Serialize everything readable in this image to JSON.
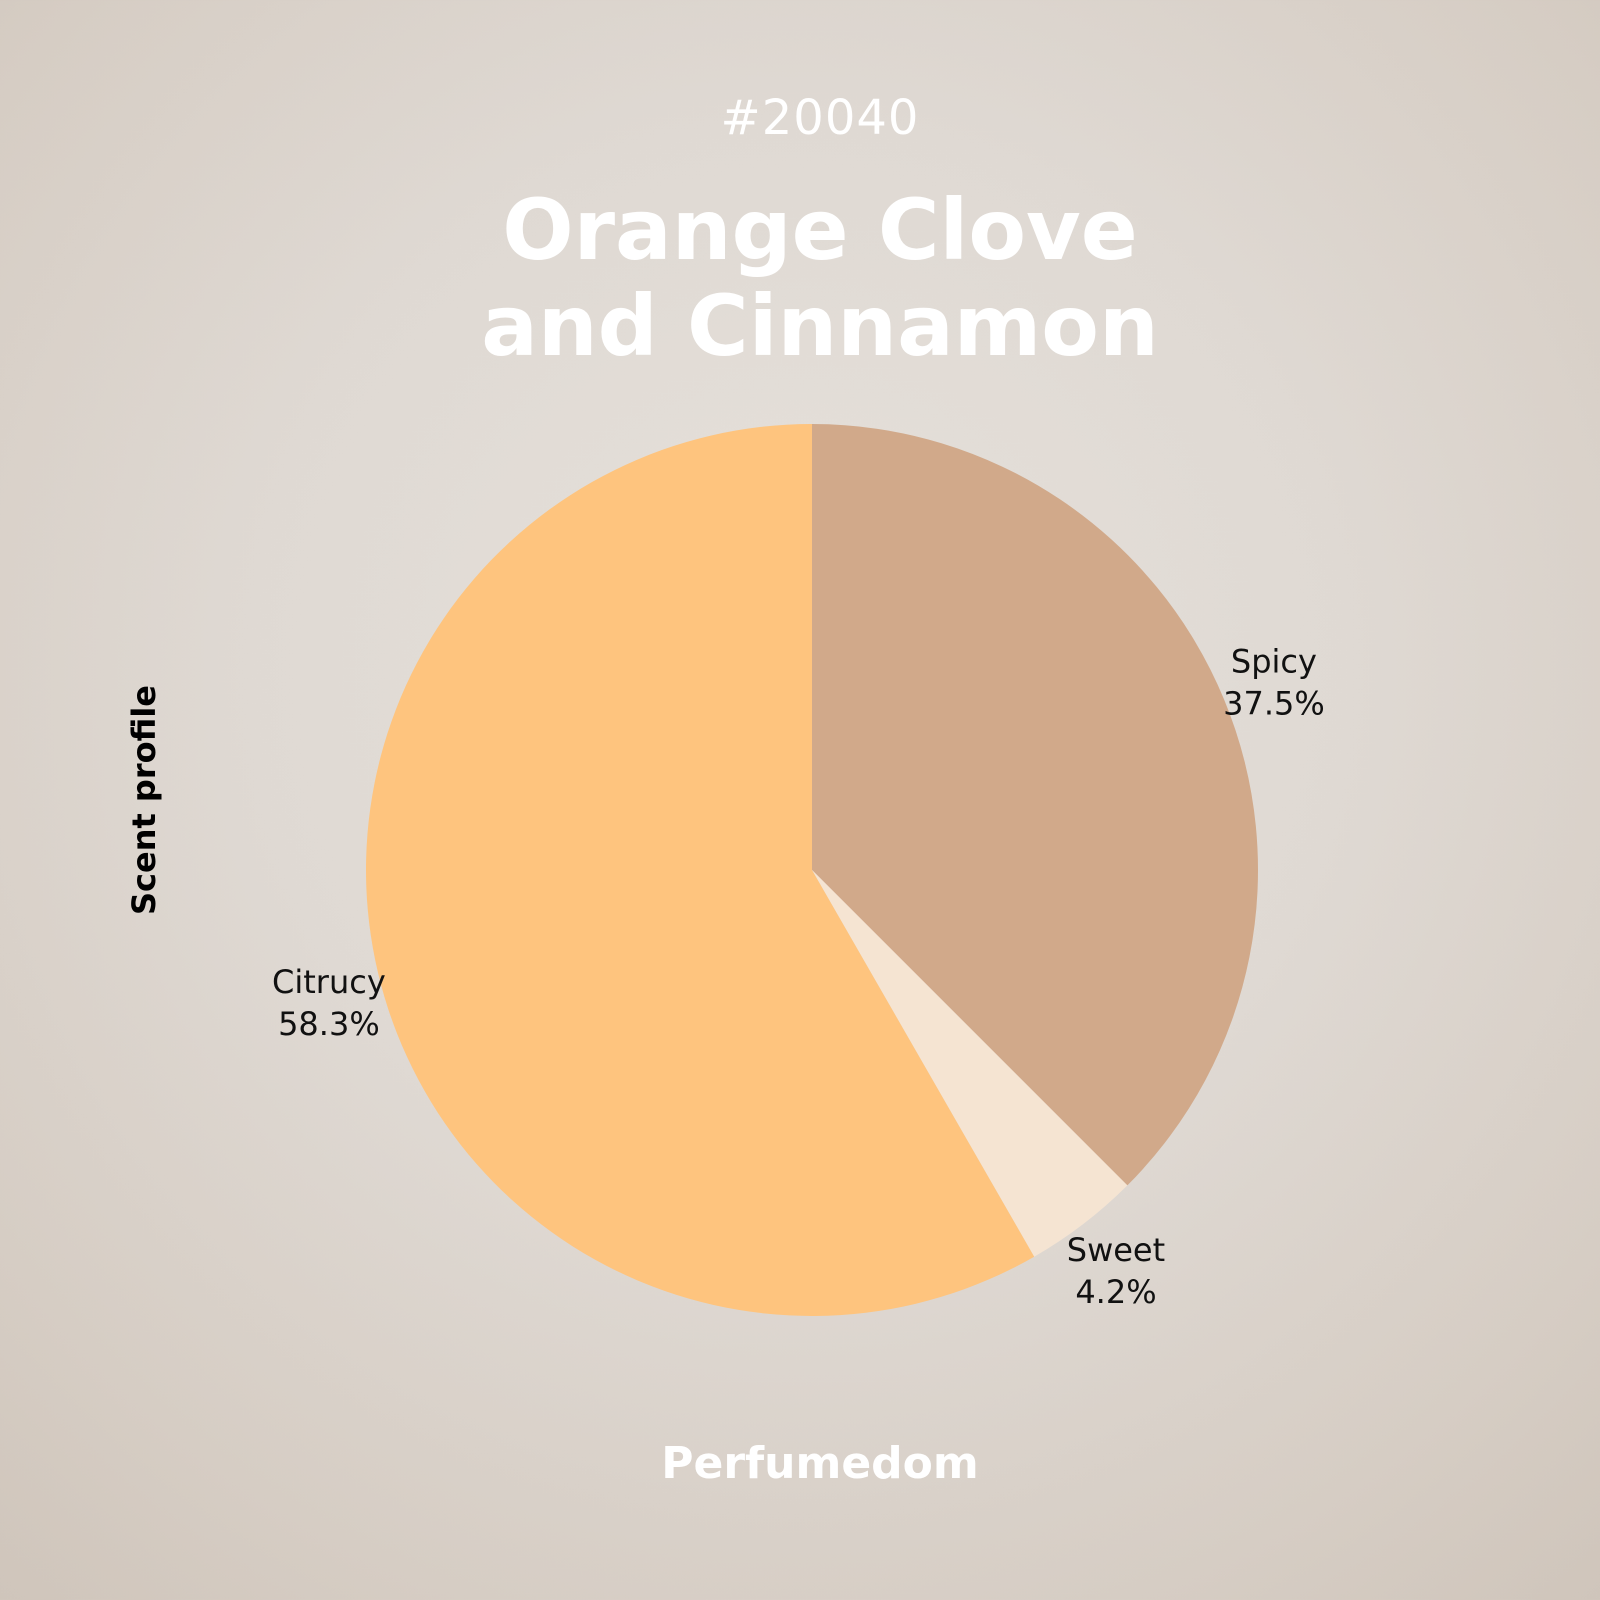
{
  "header": {
    "id": "#20040",
    "title": "Orange Clove and Cinnamon"
  },
  "side_label": "Scent profile",
  "footer": {
    "brand": "Perfumedom"
  },
  "chart_data": {
    "type": "pie",
    "title": "Orange Clove and Cinnamon",
    "start_angle_deg": 0,
    "direction": "clockwise",
    "slices": [
      {
        "label": "Spicy",
        "value": 37.5,
        "value_label": "37.5%",
        "color": "#d1a98a"
      },
      {
        "label": "Sweet",
        "value": 4.2,
        "value_label": "4.2%",
        "color": "#f5e4d2"
      },
      {
        "label": "Citrucy",
        "value": 58.3,
        "value_label": "58.3%",
        "color": "#fec47e"
      }
    ]
  }
}
